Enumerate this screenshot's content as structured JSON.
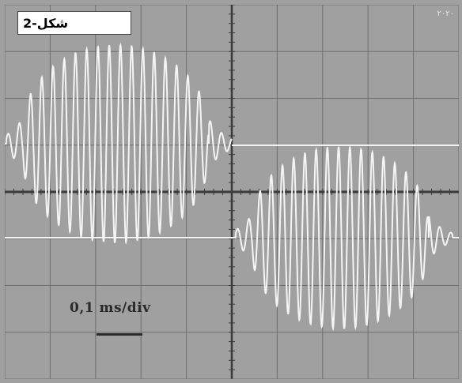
{
  "figure_label": "شكل-2",
  "timebase_label": "0,1 ms/div",
  "corner_mark": "۲۰۲۰",
  "colors": {
    "screen_background": "#a0a0a0",
    "grid": "#6e6e6e",
    "center_axis": "#3a3a3a",
    "trace": "#f4f4f4"
  },
  "display": {
    "horizontal_divisions": 10,
    "vertical_divisions": 8,
    "trace_count": 2
  }
}
